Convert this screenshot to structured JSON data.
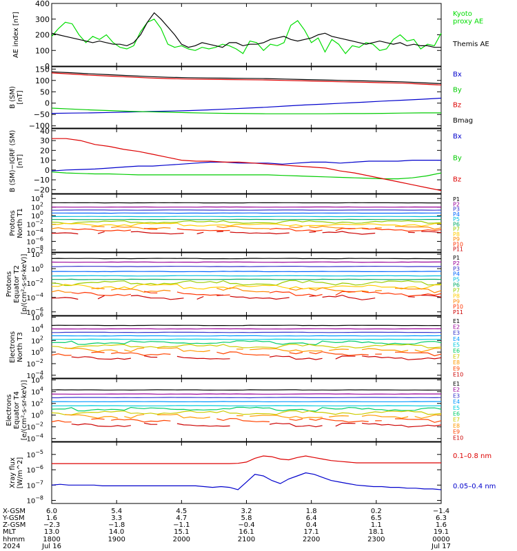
{
  "chart_data": [
    {
      "type": "line",
      "ylabel": "AE index [nT]",
      "ylim": [
        0,
        400
      ],
      "yticks": [
        "400",
        "300",
        "200",
        "100",
        "0"
      ],
      "yscale": "linear",
      "series": [
        {
          "name": "Kyoto proxy AE",
          "label_lines": [
            "Kyoto",
            "proxy AE"
          ],
          "color": "#00dd00",
          "values": [
            190,
            240,
            280,
            270,
            200,
            150,
            190,
            170,
            200,
            150,
            120,
            110,
            130,
            220,
            280,
            300,
            240,
            140,
            120,
            130,
            110,
            100,
            120,
            110,
            120,
            140,
            130,
            110,
            80,
            160,
            150,
            100,
            140,
            130,
            150,
            260,
            290,
            230,
            150,
            180,
            90,
            170,
            140,
            80,
            130,
            120,
            150,
            140,
            100,
            110,
            170,
            200,
            160,
            170,
            110,
            140,
            130,
            210
          ]
        },
        {
          "name": "Themis AE",
          "label_lines": [
            "Themis AE"
          ],
          "color": "#000000",
          "values": [
            210,
            200,
            190,
            180,
            170,
            160,
            150,
            160,
            150,
            140,
            140,
            130,
            150,
            200,
            280,
            340,
            300,
            250,
            200,
            140,
            120,
            130,
            150,
            140,
            130,
            120,
            150,
            150,
            130,
            140,
            140,
            150,
            170,
            180,
            190,
            170,
            160,
            170,
            180,
            200,
            210,
            190,
            180,
            170,
            160,
            150,
            140,
            150,
            160,
            150,
            140,
            150,
            130,
            140,
            130,
            130,
            120,
            120
          ]
        }
      ]
    },
    {
      "type": "line",
      "ylabel_lines": [
        "B (SM)",
        "[nT]"
      ],
      "ylim": [
        -110,
        160
      ],
      "yticks": [
        "150",
        "100",
        "50",
        "0",
        "−50",
        "−100"
      ],
      "yscale": "linear",
      "series": [
        {
          "name": "Bx",
          "color": "#0000cc",
          "values": [
            -45,
            -44,
            -43,
            -41,
            -39,
            -37,
            -35,
            -33,
            -30,
            -26,
            -22,
            -18,
            -13,
            -8,
            -4,
            0,
            4,
            9,
            13,
            17,
            22
          ]
        },
        {
          "name": "By",
          "color": "#00cc00",
          "values": [
            -22,
            -26,
            -30,
            -33,
            -36,
            -38,
            -40,
            -42,
            -44,
            -45,
            -46,
            -47,
            -47,
            -47,
            -47,
            -46,
            -46,
            -45,
            -44,
            -43,
            -43
          ]
        },
        {
          "name": "Bz",
          "color": "#dd0000",
          "values": [
            133,
            128,
            123,
            119,
            115,
            111,
            108,
            106,
            105,
            104,
            103,
            102,
            100,
            98,
            96,
            94,
            92,
            90,
            88,
            84,
            80
          ]
        },
        {
          "name": "Bmag",
          "color": "#000000",
          "values": [
            138,
            134,
            129,
            125,
            121,
            117,
            114,
            112,
            111,
            110,
            109,
            108,
            106,
            104,
            102,
            100,
            98,
            96,
            94,
            90,
            86
          ]
        }
      ]
    },
    {
      "type": "line",
      "ylabel_lines": [
        "B (SM)−IGRF (SM)",
        "[nT]"
      ],
      "ylim": [
        -24,
        42
      ],
      "yticks": [
        "40",
        "30",
        "20",
        "10",
        "0",
        "−10",
        "−20"
      ],
      "yscale": "linear",
      "series": [
        {
          "name": "Bx",
          "color": "#0000cc",
          "values": [
            -1,
            0,
            0.5,
            1,
            2,
            3,
            4,
            4,
            5,
            6,
            7,
            8,
            8,
            7,
            7,
            7,
            6,
            7,
            8,
            8,
            7,
            8,
            9,
            9,
            9,
            10,
            10,
            10
          ]
        },
        {
          "name": "By",
          "color": "#00cc00",
          "values": [
            -2,
            -3,
            -3.5,
            -4,
            -4,
            -4.5,
            -5,
            -5,
            -5,
            -5,
            -5,
            -5,
            -5,
            -5,
            -5,
            -5,
            -5.5,
            -6,
            -6.5,
            -7,
            -7.5,
            -8,
            -8.5,
            -9,
            -9,
            -8,
            -6,
            -3
          ]
        },
        {
          "name": "Bz",
          "color": "#dd0000",
          "values": [
            32,
            32,
            30,
            26,
            24,
            21,
            19,
            16,
            13,
            10,
            9,
            9,
            8,
            8,
            7,
            6,
            5,
            4,
            3,
            2,
            -1,
            -3,
            -6,
            -9,
            -12,
            -15,
            -18,
            -21
          ]
        }
      ]
    },
    {
      "type": "line",
      "ylabel_lines": [
        "Protons",
        "North T1"
      ],
      "ylim": [
        -8.5,
        5
      ],
      "yscale": "log",
      "ytick_exps": [
        "4",
        "2",
        "0",
        "−2",
        "−4",
        "−6",
        "−8"
      ],
      "series_log_values": [
        3.0,
        2.0,
        1.3,
        0.6,
        -0.2,
        -0.9,
        -1.5,
        -2.1,
        -2.8,
        -3.3,
        -4.0
      ],
      "series": [
        {
          "name": "P1",
          "color": "#000000"
        },
        {
          "name": "P2",
          "color": "#990099"
        },
        {
          "name": "P3",
          "color": "#3333cc"
        },
        {
          "name": "P4",
          "color": "#0066ff"
        },
        {
          "name": "P5",
          "color": "#00bbdd"
        },
        {
          "name": "P6",
          "color": "#00aa66"
        },
        {
          "name": "P7",
          "color": "#99cc00"
        },
        {
          "name": "P8",
          "color": "#ffcc00"
        },
        {
          "name": "P9",
          "color": "#ff8800"
        },
        {
          "name": "P10",
          "color": "#ff3300"
        },
        {
          "name": "P11",
          "color": "#cc0000"
        }
      ]
    },
    {
      "type": "line",
      "ylabel_lines": [
        "Protons",
        "Equator T2",
        "[p/(cm²-s-sr-keV)]"
      ],
      "ylim": [
        -6.5,
        2.2
      ],
      "yscale": "log",
      "ytick_exps": [
        "2",
        "0",
        "−2",
        "−4",
        "−6"
      ],
      "series_log_values": [
        1.4,
        0.9,
        0.3,
        -0.4,
        -1.0,
        -1.5,
        -2.0,
        -2.5,
        -3.0,
        -3.5,
        -4.0
      ],
      "series": [
        {
          "name": "P1",
          "color": "#000000"
        },
        {
          "name": "P2",
          "color": "#990099"
        },
        {
          "name": "P3",
          "color": "#3333cc"
        },
        {
          "name": "P4",
          "color": "#0066ff"
        },
        {
          "name": "P5",
          "color": "#00bbdd"
        },
        {
          "name": "P6",
          "color": "#00aa66"
        },
        {
          "name": "P7",
          "color": "#99cc00"
        },
        {
          "name": "P8",
          "color": "#ffcc00"
        },
        {
          "name": "P9",
          "color": "#ff8800"
        },
        {
          "name": "P10",
          "color": "#ff3300"
        },
        {
          "name": "P11",
          "color": "#cc0000"
        }
      ]
    },
    {
      "type": "line",
      "ylabel_lines": [
        "Electrons",
        "North T3"
      ],
      "ylim": [
        -4.5,
        6.2
      ],
      "yscale": "log",
      "ytick_exps": [
        "6",
        "4",
        "2",
        "0",
        "−2",
        "−4"
      ],
      "series_log_values": [
        4.6,
        4.0,
        3.4,
        2.8,
        2.2,
        1.6,
        1.0,
        0.4,
        -0.3,
        -1.0
      ],
      "series": [
        {
          "name": "E1",
          "color": "#000000"
        },
        {
          "name": "E2",
          "color": "#990099"
        },
        {
          "name": "E3",
          "color": "#3333cc"
        },
        {
          "name": "E4",
          "color": "#0099ff"
        },
        {
          "name": "E5",
          "color": "#00ccdd"
        },
        {
          "name": "E6",
          "color": "#00cc66"
        },
        {
          "name": "E7",
          "color": "#cccc00"
        },
        {
          "name": "E8",
          "color": "#ff9900"
        },
        {
          "name": "E9",
          "color": "#ff4400"
        },
        {
          "name": "E10",
          "color": "#cc0000"
        }
      ]
    },
    {
      "type": "line",
      "ylabel_lines": [
        "Electrons",
        "Equator T4",
        "[e/(cm²-s-sr-keV)]"
      ],
      "ylim": [
        -4.5,
        6.2
      ],
      "yscale": "log",
      "ytick_exps": [
        "6",
        "4",
        "2",
        "0",
        "−2",
        "−4"
      ],
      "series_log_values": [
        4.3,
        3.6,
        3.0,
        2.3,
        1.6,
        1.0,
        0.4,
        -0.2,
        -0.9,
        -1.7
      ],
      "series": [
        {
          "name": "E1",
          "color": "#000000"
        },
        {
          "name": "E2",
          "color": "#990099"
        },
        {
          "name": "E3",
          "color": "#3333cc"
        },
        {
          "name": "E4",
          "color": "#0099ff"
        },
        {
          "name": "E5",
          "color": "#00ccdd"
        },
        {
          "name": "E6",
          "color": "#00cc66"
        },
        {
          "name": "E7",
          "color": "#cccc00"
        },
        {
          "name": "E8",
          "color": "#ff9900"
        },
        {
          "name": "E9",
          "color": "#ff4400"
        },
        {
          "name": "E10",
          "color": "#cc0000"
        }
      ]
    },
    {
      "type": "line",
      "ylabel_lines": [
        "Xray flux",
        "[W/m^2]"
      ],
      "ylim": [
        -8.2,
        -4.2
      ],
      "yscale": "log",
      "ytick_exps": [
        "−5",
        "−6",
        "−7",
        "−8"
      ],
      "series": [
        {
          "name": "0.1–0.8 nm",
          "color": "#dd0000",
          "log_values": [
            -5.6,
            -5.6,
            -5.6,
            -5.6,
            -5.6,
            -5.6,
            -5.6,
            -5.6,
            -5.6,
            -5.6,
            -5.6,
            -5.6,
            -5.6,
            -5.6,
            -5.6,
            -5.6,
            -5.6,
            -5.6,
            -5.6,
            -5.6,
            -5.6,
            -5.6,
            -5.58,
            -5.5,
            -5.25,
            -5.1,
            -5.15,
            -5.3,
            -5.35,
            -5.2,
            -5.1,
            -5.2,
            -5.3,
            -5.4,
            -5.45,
            -5.5,
            -5.55,
            -5.55,
            -5.55,
            -5.55,
            -5.55,
            -5.55,
            -5.55,
            -5.55,
            -5.55,
            -5.55,
            -5.55
          ]
        },
        {
          "name": "0.05–0.4 nm",
          "color": "#0000cc",
          "log_values": [
            -7.0,
            -6.95,
            -7.0,
            -7.0,
            -7.0,
            -7.0,
            -7.05,
            -7.05,
            -7.05,
            -7.05,
            -7.05,
            -7.05,
            -7.05,
            -7.05,
            -7.05,
            -7.05,
            -7.05,
            -7.05,
            -7.1,
            -7.15,
            -7.1,
            -7.15,
            -7.3,
            -6.8,
            -6.3,
            -6.4,
            -6.7,
            -6.9,
            -6.6,
            -6.4,
            -6.2,
            -6.3,
            -6.5,
            -6.7,
            -6.8,
            -6.9,
            -7.0,
            -7.05,
            -7.1,
            -7.1,
            -7.15,
            -7.15,
            -7.2,
            -7.2,
            -7.25,
            -7.25,
            -7.3
          ]
        }
      ]
    }
  ],
  "xaxis": {
    "row_labels": [
      "X-GSM",
      "Y-GSM",
      "Z-GSM",
      "MLT",
      "hhmm",
      "2024"
    ],
    "columns": [
      [
        "6.0",
        "1.6",
        "−2.3",
        "13.0",
        "1800",
        "Jul 16"
      ],
      [
        "5.4",
        "3.3",
        "−1.8",
        "14.0",
        "1900",
        ""
      ],
      [
        "4.5",
        "4.7",
        "−1.1",
        "15.1",
        "2000",
        ""
      ],
      [
        "3.2",
        "5.8",
        "−0.4",
        "16.1",
        "2100",
        ""
      ],
      [
        "1.8",
        "6.4",
        "0.4",
        "17.1",
        "2200",
        ""
      ],
      [
        "0.2",
        "6.5",
        "1.1",
        "18.1",
        "2300",
        ""
      ],
      [
        "−1.4",
        "6.3",
        "1.6",
        "19.1",
        "0000",
        "Jul 17"
      ]
    ]
  }
}
